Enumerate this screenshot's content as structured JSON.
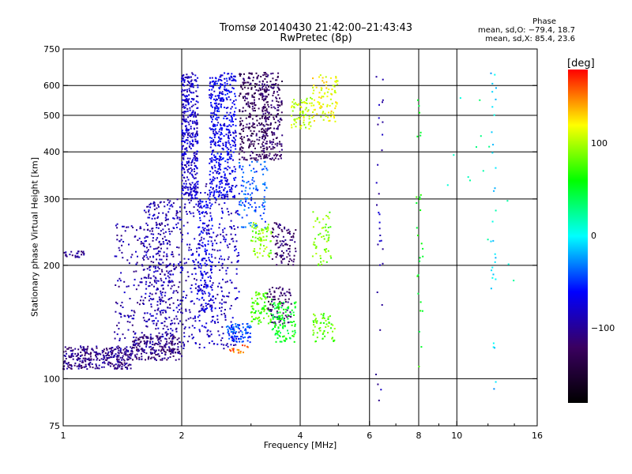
{
  "header": {
    "title": "Tromsø 20140430 21:42:00–21:43:43",
    "subtitle": "RwPretec (8p)"
  },
  "phase_info": {
    "title": "Phase",
    "line1": "mean, sd,O: −79.4, 18.7",
    "line2": "mean, sd,X:  85.4, 23.6"
  },
  "colorbar": {
    "label": "[deg]",
    "ticks": [
      {
        "label": "100",
        "value": 100
      },
      {
        "label": "0",
        "value": 0
      },
      {
        "label": "−100",
        "value": -100
      }
    ],
    "range": [
      -180,
      180
    ],
    "colors": [
      "#000000",
      "#3a0060",
      "#0000ff",
      "#00ffff",
      "#00ff00",
      "#ffff00",
      "#ff0000"
    ]
  },
  "chart_data": {
    "type": "scatter",
    "xlabel": "Frequency [MHz]",
    "ylabel": "Stationary phase Virtual Height [km]",
    "xscale": "log",
    "yscale": "log",
    "xlim": [
      1,
      16
    ],
    "ylim": [
      75,
      750
    ],
    "x_ticks": [
      {
        "label": "1",
        "value": 1
      },
      {
        "label": "2",
        "value": 2
      },
      {
        "label": "4",
        "value": 4
      },
      {
        "label": "6",
        "value": 6
      },
      {
        "label": "8",
        "value": 8
      },
      {
        "label": "10",
        "value": 10
      },
      {
        "label": "16",
        "value": 16
      }
    ],
    "x_grid": [
      2,
      4,
      6,
      8,
      10
    ],
    "y_ticks": [
      {
        "label": "75",
        "value": 75
      },
      {
        "label": "100",
        "value": 100
      },
      {
        "label": "200",
        "value": 200
      },
      {
        "label": "300",
        "value": 300
      },
      {
        "label": "400",
        "value": 400
      },
      {
        "label": "500",
        "value": 500
      },
      {
        "label": "600",
        "value": 600
      },
      {
        "label": "750",
        "value": 750
      }
    ],
    "y_grid": [
      100,
      200,
      300,
      400,
      500,
      600
    ],
    "clusters": [
      {
        "f0": 1.0,
        "f1": 1.5,
        "h0": 106,
        "h1": 122,
        "phase": -105,
        "n": 320
      },
      {
        "f0": 1.5,
        "f1": 2.0,
        "h0": 112,
        "h1": 130,
        "phase": -110,
        "n": 200
      },
      {
        "f0": 1.0,
        "f1": 1.13,
        "h0": 210,
        "h1": 218,
        "phase": -100,
        "n": 25
      },
      {
        "f0": 1.35,
        "f1": 1.9,
        "h0": 120,
        "h1": 260,
        "phase": -95,
        "n": 260
      },
      {
        "f0": 1.6,
        "f1": 2.0,
        "h0": 130,
        "h1": 300,
        "phase": -90,
        "n": 300
      },
      {
        "f0": 2.0,
        "f1": 2.8,
        "h0": 120,
        "h1": 330,
        "phase": -85,
        "n": 380
      },
      {
        "f0": 2.0,
        "f1": 2.2,
        "h0": 300,
        "h1": 650,
        "phase": -82,
        "n": 380
      },
      {
        "f0": 2.2,
        "f1": 2.4,
        "h0": 150,
        "h1": 300,
        "phase": -70,
        "n": 160
      },
      {
        "f0": 2.35,
        "f1": 2.75,
        "h0": 300,
        "h1": 650,
        "phase": -68,
        "n": 480
      },
      {
        "f0": 2.6,
        "f1": 3.0,
        "h0": 125,
        "h1": 140,
        "phase": -45,
        "n": 90
      },
      {
        "f0": 2.65,
        "f1": 2.95,
        "h0": 117,
        "h1": 123,
        "phase": 155,
        "n": 18
      },
      {
        "f0": 2.8,
        "f1": 3.3,
        "h0": 380,
        "h1": 650,
        "phase": -125,
        "n": 280
      },
      {
        "f0": 3.2,
        "f1": 3.6,
        "h0": 380,
        "h1": 650,
        "phase": -120,
        "n": 200
      },
      {
        "f0": 2.8,
        "f1": 3.3,
        "h0": 250,
        "h1": 380,
        "phase": -40,
        "n": 110
      },
      {
        "f0": 3.0,
        "f1": 3.4,
        "h0": 210,
        "h1": 260,
        "phase": 90,
        "n": 70
      },
      {
        "f0": 3.4,
        "f1": 3.9,
        "h0": 200,
        "h1": 260,
        "phase": -115,
        "n": 90
      },
      {
        "f0": 3.0,
        "f1": 3.4,
        "h0": 140,
        "h1": 170,
        "phase": 75,
        "n": 80
      },
      {
        "f0": 3.3,
        "f1": 3.8,
        "h0": 140,
        "h1": 175,
        "phase": -120,
        "n": 90
      },
      {
        "f0": 3.4,
        "f1": 3.9,
        "h0": 125,
        "h1": 160,
        "phase": 55,
        "n": 110
      },
      {
        "f0": 3.8,
        "f1": 4.3,
        "h0": 460,
        "h1": 560,
        "phase": 105,
        "n": 70
      },
      {
        "f0": 4.3,
        "f1": 5.0,
        "h0": 480,
        "h1": 640,
        "phase": 120,
        "n": 90
      },
      {
        "f0": 4.3,
        "f1": 4.8,
        "h0": 200,
        "h1": 280,
        "phase": 90,
        "n": 55
      },
      {
        "f0": 4.3,
        "f1": 4.9,
        "h0": 125,
        "h1": 150,
        "phase": 80,
        "n": 60
      },
      {
        "f0": 6.2,
        "f1": 6.5,
        "h0": 85,
        "h1": 650,
        "phase": -90,
        "n": 32
      },
      {
        "f0": 7.9,
        "f1": 8.2,
        "h0": 100,
        "h1": 550,
        "phase": 60,
        "n": 28
      },
      {
        "f0": 12.2,
        "f1": 12.6,
        "h0": 85,
        "h1": 650,
        "phase": -10,
        "n": 30
      },
      {
        "f0": 9.0,
        "f1": 14.0,
        "h0": 180,
        "h1": 650,
        "phase": 20,
        "n": 16
      }
    ]
  }
}
